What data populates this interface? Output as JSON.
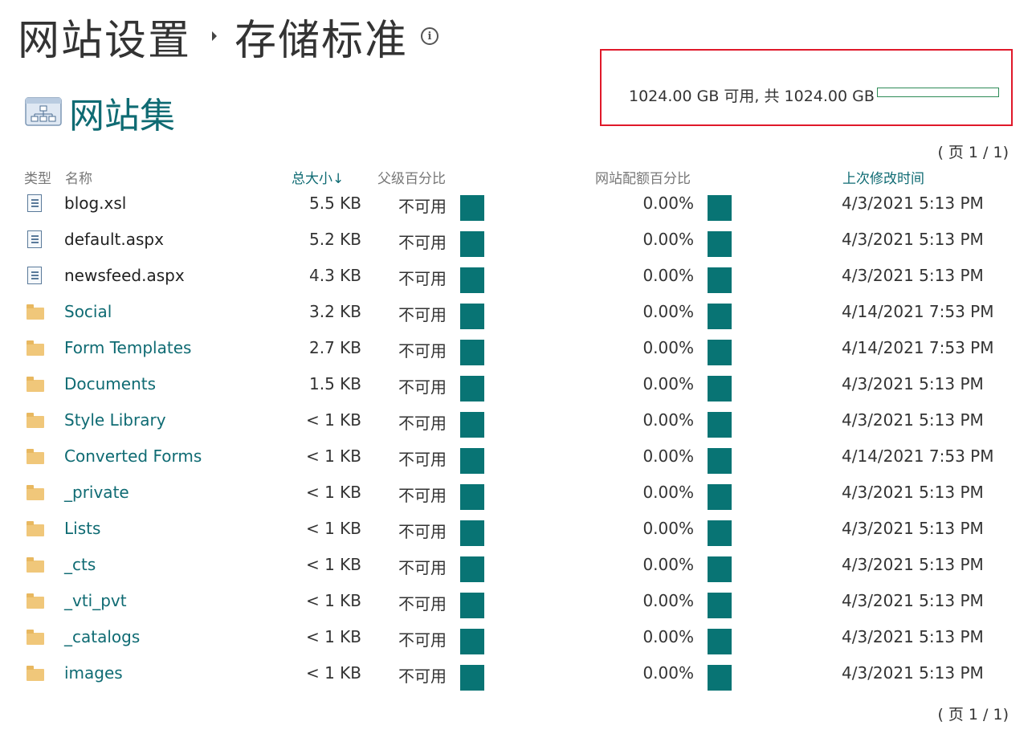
{
  "page_title": {
    "breadcrumb_parent": "网站设置",
    "current": "存储标准"
  },
  "site_collection": {
    "title": "网站集"
  },
  "quota": {
    "text": "1024.00 GB 可用, 共 1024.00 GB",
    "used_fraction": 0.0,
    "colors": {
      "border": "#e0192a",
      "bar_border": "#2e8b57"
    }
  },
  "pager": {
    "top": "( 页 1 / 1)",
    "bottom": "( 页 1 / 1)"
  },
  "columns": {
    "type": "类型",
    "name": "名称",
    "size": "总大小↓",
    "parent_pct": "父级百分比",
    "quota_pct": "网站配额百分比",
    "modified": "上次修改时间"
  },
  "colors": {
    "accent": "#0f6b73",
    "bar": "#087474",
    "folder": "#f0c77a"
  },
  "rows": [
    {
      "icon": "document-icon",
      "name": "blog.xsl",
      "size": "5.5 KB",
      "parent_pct": "不可用",
      "quota_pct": "0.00%",
      "modified": "4/3/2021 5:13 PM"
    },
    {
      "icon": "document-icon",
      "name": "default.aspx",
      "size": "5.2 KB",
      "parent_pct": "不可用",
      "quota_pct": "0.00%",
      "modified": "4/3/2021 5:13 PM"
    },
    {
      "icon": "document-icon",
      "name": "newsfeed.aspx",
      "size": "4.3 KB",
      "parent_pct": "不可用",
      "quota_pct": "0.00%",
      "modified": "4/3/2021 5:13 PM"
    },
    {
      "icon": "folder-icon",
      "name": "Social",
      "size": "3.2 KB",
      "parent_pct": "不可用",
      "quota_pct": "0.00%",
      "modified": "4/14/2021 7:53 PM"
    },
    {
      "icon": "folder-icon",
      "name": "Form Templates",
      "size": "2.7 KB",
      "parent_pct": "不可用",
      "quota_pct": "0.00%",
      "modified": "4/14/2021 7:53 PM"
    },
    {
      "icon": "folder-icon",
      "name": "Documents",
      "size": "1.5 KB",
      "parent_pct": "不可用",
      "quota_pct": "0.00%",
      "modified": "4/3/2021 5:13 PM"
    },
    {
      "icon": "folder-icon",
      "name": "Style Library",
      "size": "< 1 KB",
      "parent_pct": "不可用",
      "quota_pct": "0.00%",
      "modified": "4/3/2021 5:13 PM"
    },
    {
      "icon": "folder-icon",
      "name": "Converted Forms",
      "size": "< 1 KB",
      "parent_pct": "不可用",
      "quota_pct": "0.00%",
      "modified": "4/14/2021 7:53 PM"
    },
    {
      "icon": "folder-icon",
      "name": "_private",
      "size": "< 1 KB",
      "parent_pct": "不可用",
      "quota_pct": "0.00%",
      "modified": "4/3/2021 5:13 PM"
    },
    {
      "icon": "folder-icon",
      "name": "Lists",
      "size": "< 1 KB",
      "parent_pct": "不可用",
      "quota_pct": "0.00%",
      "modified": "4/3/2021 5:13 PM"
    },
    {
      "icon": "folder-icon",
      "name": "_cts",
      "size": "< 1 KB",
      "parent_pct": "不可用",
      "quota_pct": "0.00%",
      "modified": "4/3/2021 5:13 PM"
    },
    {
      "icon": "folder-icon",
      "name": "_vti_pvt",
      "size": "< 1 KB",
      "parent_pct": "不可用",
      "quota_pct": "0.00%",
      "modified": "4/3/2021 5:13 PM"
    },
    {
      "icon": "folder-icon",
      "name": "_catalogs",
      "size": "< 1 KB",
      "parent_pct": "不可用",
      "quota_pct": "0.00%",
      "modified": "4/3/2021 5:13 PM"
    },
    {
      "icon": "folder-icon",
      "name": "images",
      "size": "< 1 KB",
      "parent_pct": "不可用",
      "quota_pct": "0.00%",
      "modified": "4/3/2021 5:13 PM"
    }
  ]
}
